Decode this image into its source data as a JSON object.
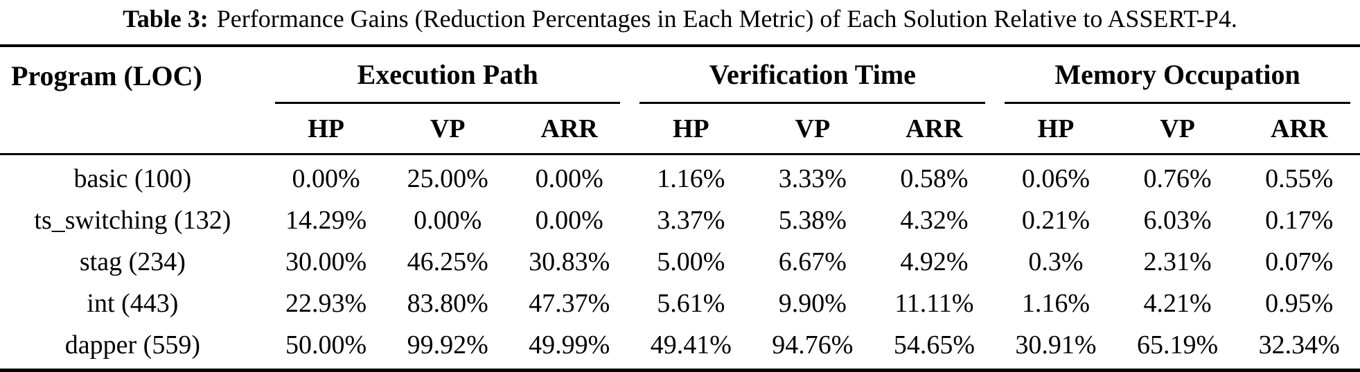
{
  "table": {
    "caption": {
      "label": "Table 3:",
      "text": "Performance Gains (Reduction Percentages in Each Metric) of Each Solution Relative to ASSERT-P4."
    },
    "columns": {
      "program_header": "Program (LOC)",
      "groups": [
        {
          "label": "Execution Path",
          "subcolumns": [
            "HP",
            "VP",
            "ARR"
          ]
        },
        {
          "label": "Verification Time",
          "subcolumns": [
            "HP",
            "VP",
            "ARR"
          ]
        },
        {
          "label": "Memory Occupation",
          "subcolumns": [
            "HP",
            "VP",
            "ARR"
          ]
        }
      ]
    },
    "rows": [
      {
        "program": "basic (100)",
        "values": [
          "0.00%",
          "25.00%",
          "0.00%",
          "1.16%",
          "3.33%",
          "0.58%",
          "0.06%",
          "0.76%",
          "0.55%"
        ]
      },
      {
        "program": "ts_switching (132)",
        "values": [
          "14.29%",
          "0.00%",
          "0.00%",
          "3.37%",
          "5.38%",
          "4.32%",
          "0.21%",
          "6.03%",
          "0.17%"
        ]
      },
      {
        "program": "stag (234)",
        "values": [
          "30.00%",
          "46.25%",
          "30.83%",
          "5.00%",
          "6.67%",
          "4.92%",
          "0.3%",
          "2.31%",
          "0.07%"
        ]
      },
      {
        "program": "int (443)",
        "values": [
          "22.93%",
          "83.80%",
          "47.37%",
          "5.61%",
          "9.90%",
          "11.11%",
          "1.16%",
          "4.21%",
          "0.95%"
        ]
      },
      {
        "program": "dapper (559)",
        "values": [
          "50.00%",
          "99.92%",
          "49.99%",
          "49.41%",
          "94.76%",
          "54.65%",
          "30.91%",
          "65.19%",
          "32.34%"
        ]
      }
    ],
    "colors": {
      "text": "#000000",
      "background": "#ffffff",
      "rule": "#000000"
    }
  }
}
